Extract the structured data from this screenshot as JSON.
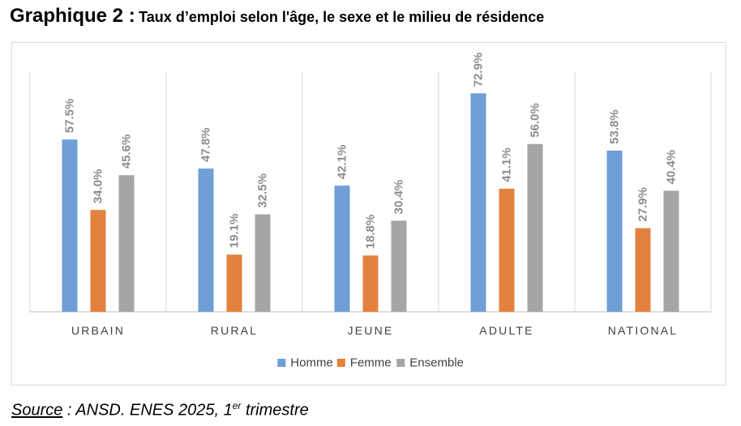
{
  "header": {
    "lead": "Graphique 2 :",
    "title": "Taux d’emploi selon l'âge, le sexe et le milieu de résidence"
  },
  "source": {
    "label": "Source",
    "text": " : ANSD. ENES 2025, 1",
    "sup": "er",
    "tail": " trimestre"
  },
  "chart_data": {
    "type": "bar",
    "categories": [
      "URBAIN",
      "RURAL",
      "JEUNE",
      "ADULTE",
      "NATIONAL"
    ],
    "series": [
      {
        "name": "Homme",
        "color": "#6f9fd6",
        "values": [
          57.5,
          47.8,
          42.1,
          72.9,
          53.8
        ],
        "labels": [
          "57.5%",
          "47.8%",
          "42.1%",
          "72.9%",
          "53.8%"
        ]
      },
      {
        "name": "Femme",
        "color": "#e3823f",
        "values": [
          34.0,
          19.1,
          18.8,
          41.1,
          27.9
        ],
        "labels": [
          "34.0%",
          "19.1%",
          "18.8%",
          "41.1%",
          "27.9%"
        ]
      },
      {
        "name": "Ensemble",
        "color": "#a5a5a5",
        "values": [
          45.6,
          32.5,
          30.4,
          56.0,
          40.4
        ],
        "labels": [
          "45.6%",
          "32.5%",
          "30.4%",
          "56.0%",
          "40.4%"
        ]
      }
    ],
    "ylim": [
      0,
      80
    ],
    "legend": "bottom",
    "data_label_color": "#8c8c8c",
    "grid": false
  }
}
